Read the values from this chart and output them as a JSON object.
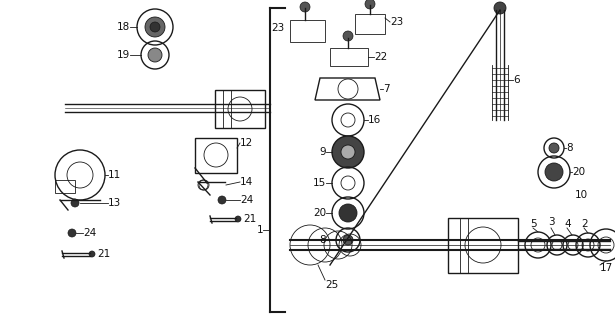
{
  "bg_color": "#ffffff",
  "line_color": "#1a1a1a",
  "label_color": "#000000",
  "fig_width": 6.15,
  "fig_height": 3.2,
  "dpi": 100
}
